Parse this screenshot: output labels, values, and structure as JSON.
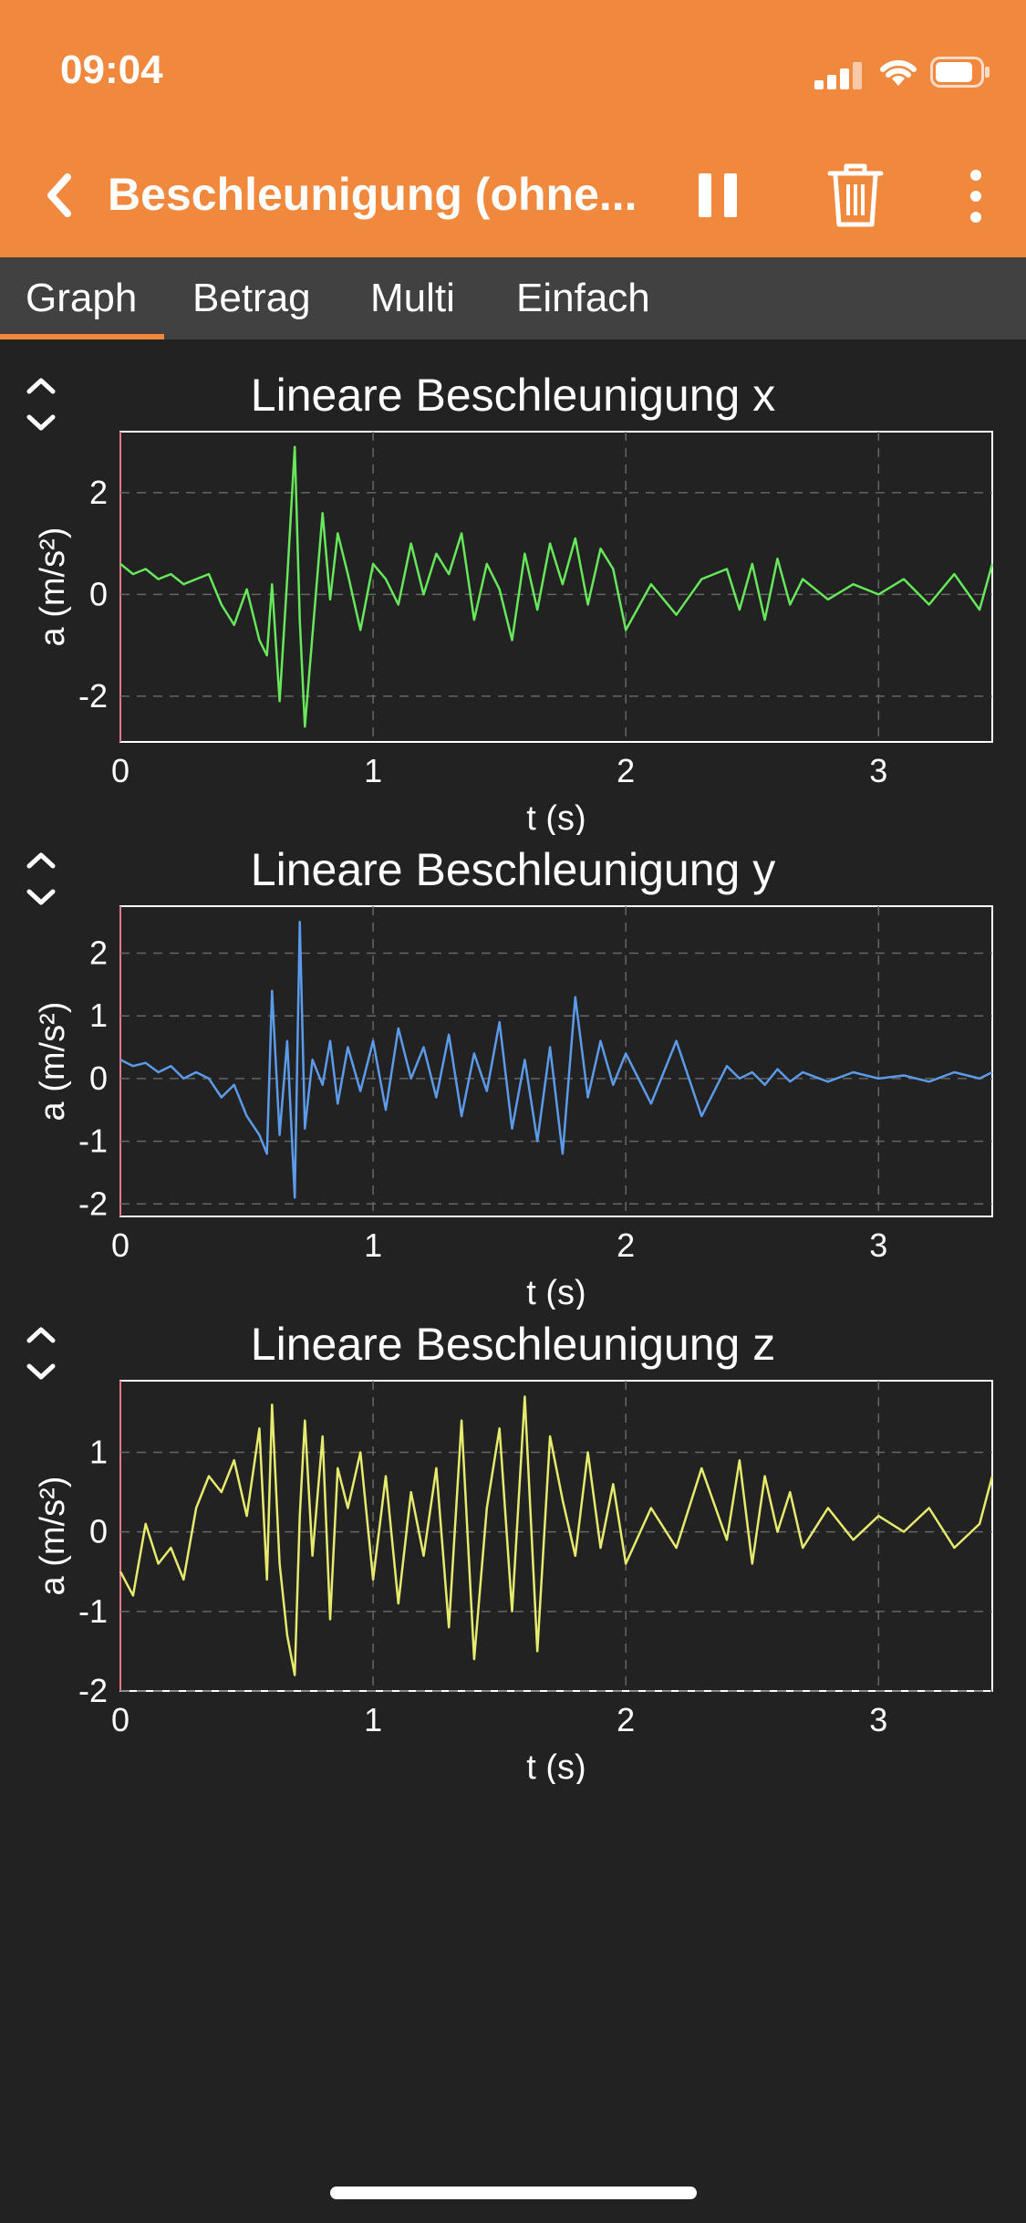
{
  "status": {
    "time": "09:04"
  },
  "header": {
    "title": "Beschleunigung (ohne..."
  },
  "tabs": [
    {
      "label": "Graph",
      "active": true
    },
    {
      "label": "Betrag"
    },
    {
      "label": "Multi"
    },
    {
      "label": "Einfach"
    }
  ],
  "colors": {
    "header": "#F0883E",
    "background": "#222222",
    "tabs": "#414141"
  },
  "chart_data": [
    {
      "type": "line",
      "title": "Lineare Beschleunigung x",
      "xlabel": "t (s)",
      "ylabel": "a (m/s²)",
      "xlim": [
        0,
        3.45
      ],
      "ylim": [
        -2.9,
        3.2
      ],
      "xticks": [
        0,
        1,
        2,
        3
      ],
      "yticks": [
        -2,
        0,
        2
      ],
      "color": "#66E85A",
      "x": [
        0,
        0.05,
        0.1,
        0.15,
        0.2,
        0.25,
        0.3,
        0.35,
        0.4,
        0.45,
        0.5,
        0.55,
        0.58,
        0.6,
        0.63,
        0.66,
        0.69,
        0.71,
        0.73,
        0.76,
        0.8,
        0.83,
        0.86,
        0.9,
        0.95,
        1.0,
        1.05,
        1.1,
        1.15,
        1.2,
        1.25,
        1.3,
        1.35,
        1.4,
        1.45,
        1.5,
        1.55,
        1.6,
        1.65,
        1.7,
        1.75,
        1.8,
        1.85,
        1.9,
        1.95,
        2.0,
        2.1,
        2.2,
        2.3,
        2.4,
        2.45,
        2.5,
        2.55,
        2.6,
        2.65,
        2.7,
        2.8,
        2.9,
        3.0,
        3.1,
        3.2,
        3.3,
        3.4,
        3.45
      ],
      "values": [
        0.6,
        0.4,
        0.5,
        0.3,
        0.4,
        0.2,
        0.3,
        0.4,
        -0.2,
        -0.6,
        0.1,
        -0.9,
        -1.2,
        0.2,
        -2.1,
        0.3,
        2.9,
        -0.5,
        -2.6,
        -0.8,
        1.6,
        -0.1,
        1.2,
        0.4,
        -0.7,
        0.6,
        0.3,
        -0.2,
        1.0,
        0.0,
        0.8,
        0.4,
        1.2,
        -0.5,
        0.6,
        0.1,
        -0.9,
        0.8,
        -0.3,
        1.0,
        0.2,
        1.1,
        -0.2,
        0.9,
        0.5,
        -0.7,
        0.2,
        -0.4,
        0.3,
        0.5,
        -0.3,
        0.6,
        -0.5,
        0.7,
        -0.2,
        0.3,
        -0.1,
        0.2,
        0.0,
        0.3,
        -0.2,
        0.4,
        -0.3,
        0.6
      ]
    },
    {
      "type": "line",
      "title": "Lineare Beschleunigung y",
      "xlabel": "t (s)",
      "ylabel": "a (m/s²)",
      "xlim": [
        0,
        3.45
      ],
      "ylim": [
        -2.2,
        2.75
      ],
      "xticks": [
        0,
        1,
        2,
        3
      ],
      "yticks": [
        -2,
        -1,
        0,
        1,
        2
      ],
      "color": "#5B9BEA",
      "x": [
        0,
        0.05,
        0.1,
        0.15,
        0.2,
        0.25,
        0.3,
        0.35,
        0.4,
        0.45,
        0.5,
        0.55,
        0.58,
        0.6,
        0.63,
        0.66,
        0.69,
        0.71,
        0.73,
        0.76,
        0.8,
        0.83,
        0.86,
        0.9,
        0.95,
        1.0,
        1.05,
        1.1,
        1.15,
        1.2,
        1.25,
        1.3,
        1.35,
        1.4,
        1.45,
        1.5,
        1.55,
        1.6,
        1.65,
        1.7,
        1.75,
        1.8,
        1.85,
        1.9,
        1.95,
        2.0,
        2.1,
        2.2,
        2.3,
        2.4,
        2.45,
        2.5,
        2.55,
        2.6,
        2.65,
        2.7,
        2.8,
        2.9,
        3.0,
        3.1,
        3.2,
        3.3,
        3.4,
        3.45
      ],
      "values": [
        0.3,
        0.2,
        0.25,
        0.1,
        0.2,
        0.0,
        0.1,
        0.0,
        -0.3,
        -0.1,
        -0.6,
        -0.9,
        -1.2,
        1.4,
        -0.9,
        0.6,
        -1.9,
        2.5,
        -0.8,
        0.3,
        -0.1,
        0.6,
        -0.4,
        0.5,
        -0.2,
        0.6,
        -0.5,
        0.8,
        0.0,
        0.5,
        -0.3,
        0.7,
        -0.6,
        0.4,
        -0.2,
        0.9,
        -0.8,
        0.3,
        -1.0,
        0.5,
        -1.2,
        1.3,
        -0.3,
        0.6,
        -0.1,
        0.4,
        -0.4,
        0.6,
        -0.6,
        0.2,
        0.0,
        0.1,
        -0.1,
        0.15,
        -0.05,
        0.1,
        -0.05,
        0.1,
        0.0,
        0.05,
        -0.05,
        0.1,
        0.0,
        0.1
      ]
    },
    {
      "type": "line",
      "title": "Lineare Beschleunigung z",
      "xlabel": "t (s)",
      "ylabel": "a (m/s²)",
      "xlim": [
        0,
        3.45
      ],
      "ylim": [
        -2.0,
        1.9
      ],
      "xticks": [
        0,
        1,
        2,
        3
      ],
      "yticks": [
        -2,
        -1,
        0,
        1
      ],
      "color": "#E6EB6E",
      "x": [
        0,
        0.05,
        0.1,
        0.15,
        0.2,
        0.25,
        0.3,
        0.35,
        0.4,
        0.45,
        0.5,
        0.55,
        0.58,
        0.6,
        0.63,
        0.66,
        0.69,
        0.71,
        0.73,
        0.76,
        0.8,
        0.83,
        0.86,
        0.9,
        0.95,
        1.0,
        1.05,
        1.1,
        1.15,
        1.2,
        1.25,
        1.3,
        1.35,
        1.4,
        1.45,
        1.5,
        1.55,
        1.6,
        1.65,
        1.7,
        1.75,
        1.8,
        1.85,
        1.9,
        1.95,
        2.0,
        2.1,
        2.2,
        2.3,
        2.4,
        2.45,
        2.5,
        2.55,
        2.6,
        2.65,
        2.7,
        2.8,
        2.9,
        3.0,
        3.1,
        3.2,
        3.3,
        3.4,
        3.45
      ],
      "values": [
        -0.5,
        -0.8,
        0.1,
        -0.4,
        -0.2,
        -0.6,
        0.3,
        0.7,
        0.5,
        0.9,
        0.2,
        1.3,
        -0.6,
        1.6,
        -0.4,
        -1.3,
        -1.8,
        0.2,
        1.4,
        -0.3,
        1.2,
        -1.1,
        0.8,
        0.3,
        1.0,
        -0.6,
        0.7,
        -0.9,
        0.5,
        -0.3,
        0.8,
        -1.2,
        1.4,
        -1.6,
        0.3,
        1.3,
        -1.0,
        1.7,
        -1.5,
        1.2,
        0.4,
        -0.3,
        1.0,
        -0.2,
        0.6,
        -0.4,
        0.3,
        -0.2,
        0.8,
        -0.1,
        0.9,
        -0.4,
        0.7,
        0.0,
        0.5,
        -0.2,
        0.3,
        -0.1,
        0.2,
        0.0,
        0.3,
        -0.2,
        0.1,
        0.7
      ]
    }
  ]
}
